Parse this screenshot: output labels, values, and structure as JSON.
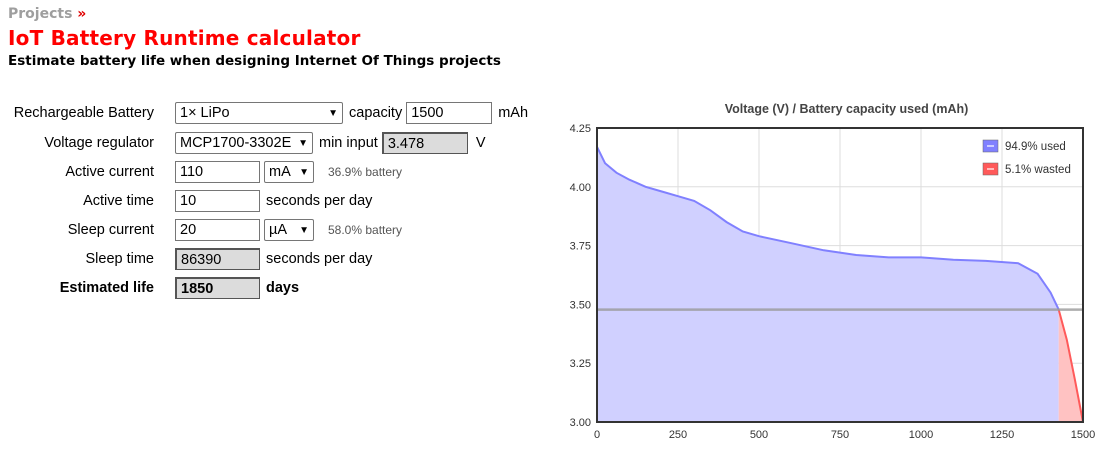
{
  "header": {
    "breadcrumb": "Projects",
    "breadcrumb_sep": "»",
    "title": "IoT Battery Runtime calculator",
    "subtitle": "Estimate battery life when designing Internet Of Things projects"
  },
  "form": {
    "battery": {
      "label": "Rechargeable Battery",
      "value": "1× LiPo",
      "capacity_label": "capacity",
      "capacity_value": "1500",
      "capacity_unit": "mAh"
    },
    "regulator": {
      "label": "Voltage regulator",
      "value": "MCP1700-3302E",
      "min_input_label": "min input",
      "min_input_value": "3.478",
      "min_input_unit": "V"
    },
    "active_current": {
      "label": "Active current",
      "value": "110",
      "unit": "mA",
      "note": "36.9% battery"
    },
    "active_time": {
      "label": "Active time",
      "value": "10",
      "unit": "seconds per day"
    },
    "sleep_current": {
      "label": "Sleep current",
      "value": "20",
      "unit": "µA",
      "note": "58.0% battery"
    },
    "sleep_time": {
      "label": "Sleep time",
      "value": "86390",
      "unit": "seconds per day"
    },
    "estimated_life": {
      "label": "Estimated life",
      "value": "1850",
      "unit": "days"
    }
  },
  "chart_data": {
    "type": "area",
    "title": "Voltage (V) / Battery capacity used (mAh)",
    "xlabel": "",
    "ylabel": "",
    "xlim": [
      0,
      1500
    ],
    "ylim": [
      3.0,
      4.25
    ],
    "x_ticks": [
      "0",
      "250",
      "500",
      "750",
      "1000",
      "1250",
      "1500"
    ],
    "y_ticks": [
      "3.00",
      "3.25",
      "3.50",
      "3.75",
      "4.00",
      "4.25"
    ],
    "grid": true,
    "legend_position": "top-right",
    "threshold": {
      "y": 3.478
    },
    "split_x": 1425,
    "series": [
      {
        "name": "94.9% used",
        "color": "#8080ff"
      },
      {
        "name": "5.1% wasted",
        "color": "#ff5a5a"
      }
    ],
    "curve": {
      "x": [
        0,
        25,
        60,
        100,
        150,
        200,
        250,
        300,
        350,
        400,
        450,
        500,
        600,
        700,
        800,
        900,
        1000,
        1100,
        1200,
        1300,
        1360,
        1400,
        1425,
        1450,
        1475,
        1500
      ],
      "y": [
        4.17,
        4.1,
        4.06,
        4.03,
        4.0,
        3.98,
        3.96,
        3.94,
        3.9,
        3.85,
        3.81,
        3.79,
        3.76,
        3.73,
        3.71,
        3.7,
        3.7,
        3.69,
        3.685,
        3.675,
        3.63,
        3.55,
        3.478,
        3.35,
        3.18,
        3.0
      ]
    }
  }
}
